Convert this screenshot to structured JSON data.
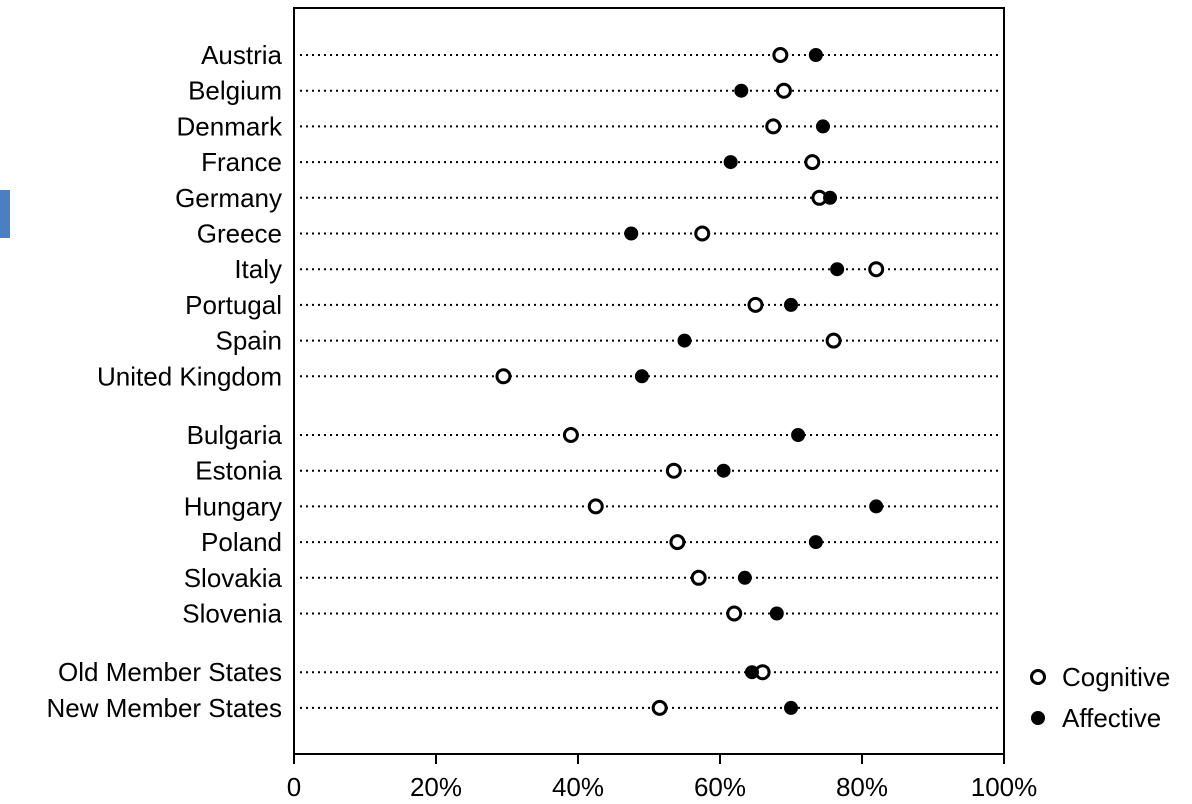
{
  "chart_data": {
    "type": "scatter",
    "orientation": "horizontal dot plot",
    "categories": [
      "Austria",
      "Belgium",
      "Denmark",
      "France",
      "Germany",
      "Greece",
      "Italy",
      "Portugal",
      "Spain",
      "United Kingdom",
      "Bulgaria",
      "Estonia",
      "Hungary",
      "Poland",
      "Slovakia",
      "Slovenia",
      "Old Member States",
      "New Member States"
    ],
    "groups": [
      10,
      6,
      2
    ],
    "series": [
      {
        "name": "Cognitive",
        "marker": "open-circle",
        "values": [
          68.5,
          69,
          67.5,
          73,
          74,
          57.5,
          82,
          65,
          76,
          29.5,
          39,
          53.5,
          42.5,
          54,
          57,
          62,
          66,
          51.5
        ]
      },
      {
        "name": "Affective",
        "marker": "filled-circle",
        "values": [
          73.5,
          63,
          74.5,
          61.5,
          75.5,
          47.5,
          76.5,
          70,
          55,
          49,
          71,
          60.5,
          82,
          73.5,
          63.5,
          68,
          64.5,
          70
        ]
      }
    ],
    "xlim": [
      0,
      100
    ],
    "x_ticks": [
      "0",
      "20%",
      "40%",
      "60%",
      "80%",
      "100%"
    ],
    "x_tick_values": [
      0,
      20,
      40,
      60,
      80,
      100
    ],
    "title": "",
    "xlabel": "",
    "ylabel": "",
    "grid": "dotted row guide lines",
    "legend_position": "bottom-right outside"
  },
  "colors": {
    "frame": "#000000",
    "marker_fill": "#000000",
    "marker_open_fill": "#ffffff",
    "left_accent": "#4a7fc1"
  }
}
